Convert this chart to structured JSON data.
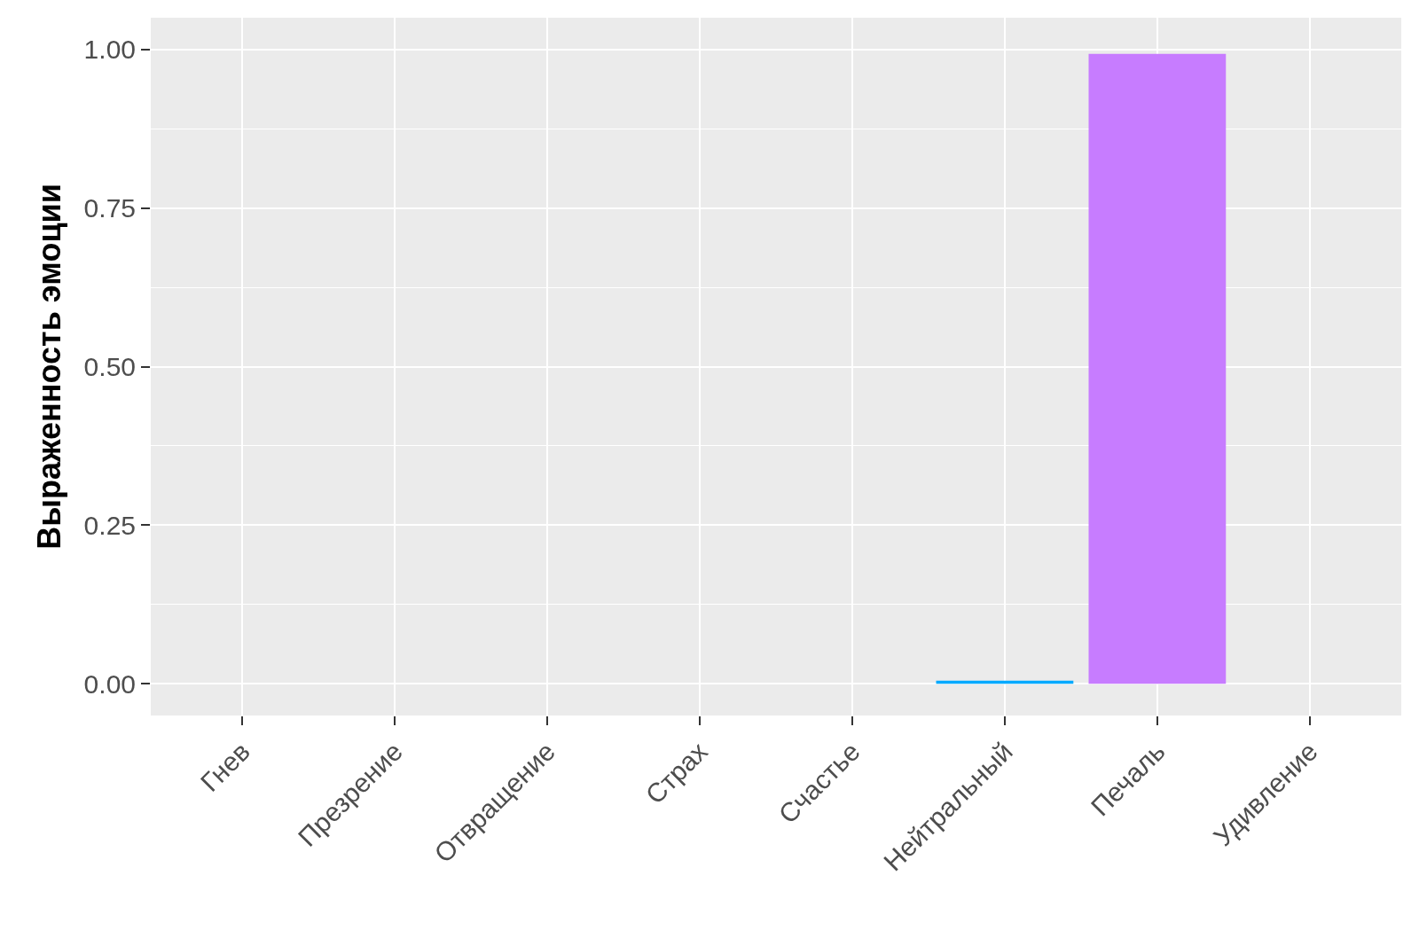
{
  "chart_data": {
    "type": "bar",
    "ylabel": "Выраженность эмоции",
    "categories": [
      "Гнев",
      "Презрение",
      "Отвращение",
      "Страх",
      "Счастье",
      "Нейтральный",
      "Печаль",
      "Удивление"
    ],
    "values": [
      0,
      0,
      0,
      0,
      0,
      0.005,
      0.993,
      0
    ],
    "colors": [
      "#f8766d",
      "#cd9600",
      "#7cae00",
      "#00be67",
      "#00bfc4",
      "#00a9ff",
      "#c77cff",
      "#ff61cc"
    ],
    "ylim": [
      -0.05,
      1.05
    ],
    "yticks": [
      {
        "value": 1,
        "label": "1.00"
      },
      {
        "value": 0.75,
        "label": "0.75"
      },
      {
        "value": 0.5,
        "label": "0.50"
      },
      {
        "value": 0.25,
        "label": "0.25"
      },
      {
        "value": 0,
        "label": "0.00"
      }
    ],
    "grid": true
  }
}
